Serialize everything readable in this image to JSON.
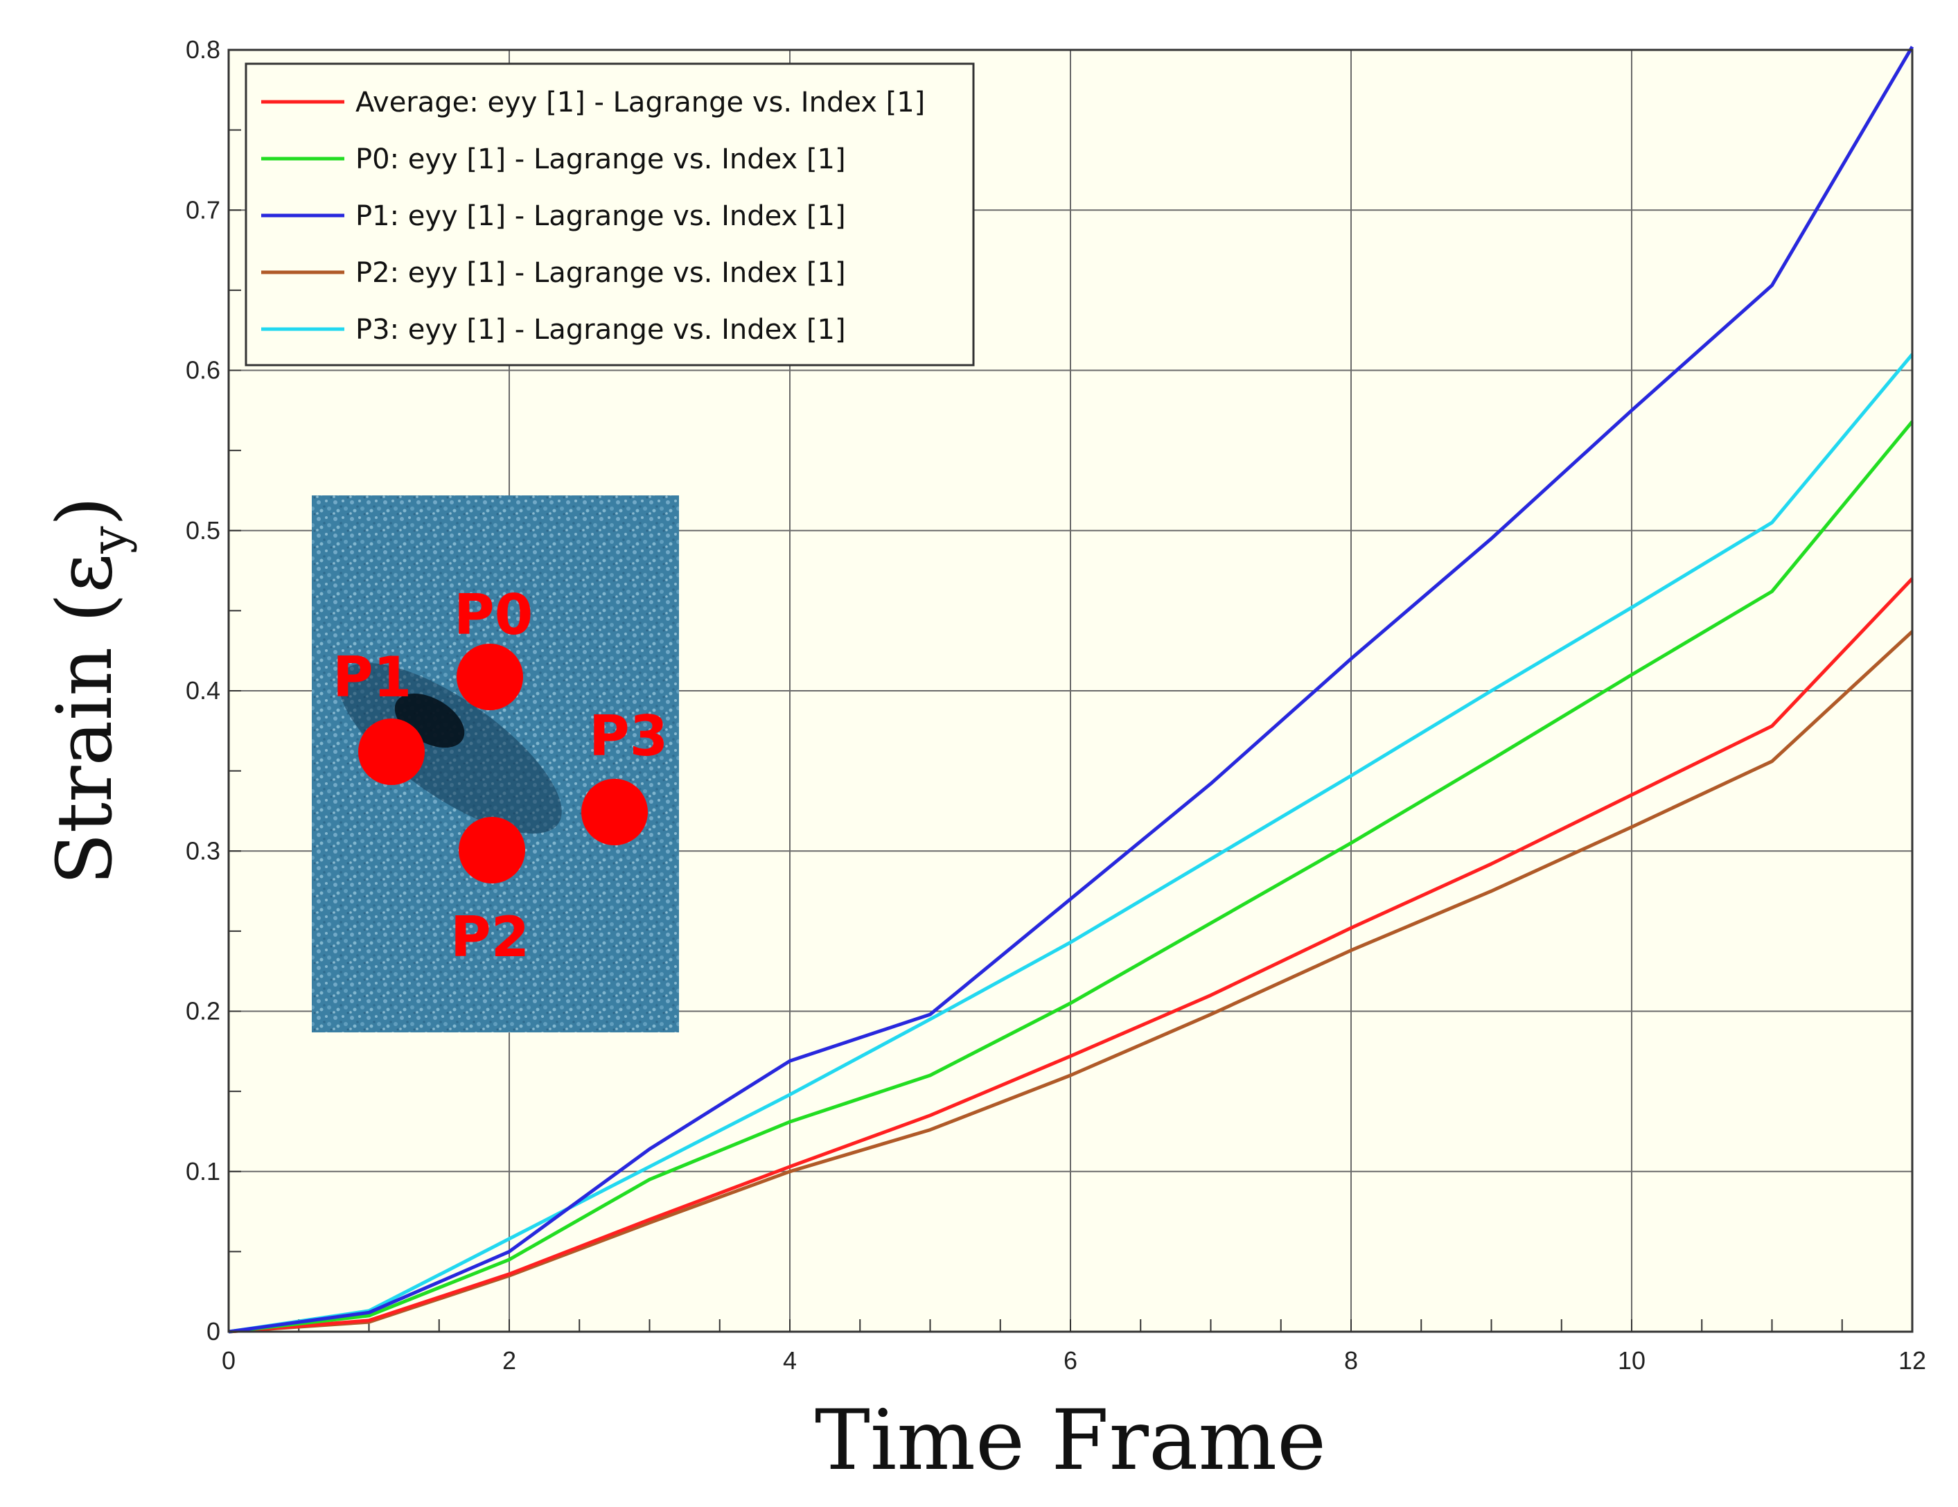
{
  "chart_data": {
    "type": "line",
    "xlabel": "Time Frame",
    "ylabel_main": "Strain (ε",
    "ylabel_sub": "y",
    "ylabel_close": ")",
    "xlim": [
      0,
      12
    ],
    "ylim": [
      0,
      0.8
    ],
    "xticks": [
      "0",
      "2",
      "4",
      "6",
      "8",
      "10",
      "12"
    ],
    "yticks": [
      "0",
      "0.1",
      "0.2",
      "0.3",
      "0.4",
      "0.5",
      "0.6",
      "0.7",
      "0.8"
    ],
    "grid": true,
    "legend_position": "top-left",
    "background": "#fffff0",
    "x": [
      0,
      1,
      2,
      3,
      4,
      5,
      6,
      7,
      8,
      9,
      10,
      11,
      12
    ],
    "series": [
      {
        "name": "Average: eyy [1] - Lagrange vs. Index [1]",
        "color": "#ff2020",
        "values": [
          0,
          0.007,
          0.036,
          0.07,
          0.103,
          0.135,
          0.172,
          0.21,
          0.252,
          0.292,
          0.335,
          0.378,
          0.47
        ]
      },
      {
        "name": "P0: eyy [1] - Lagrange vs. Index [1]",
        "color": "#22dd22",
        "values": [
          0,
          0.01,
          0.045,
          0.095,
          0.131,
          0.16,
          0.205,
          0.255,
          0.305,
          0.357,
          0.41,
          0.462,
          0.568
        ]
      },
      {
        "name": "P1: eyy [1] - Lagrange vs. Index [1]",
        "color": "#2828dd",
        "values": [
          0,
          0.012,
          0.05,
          0.114,
          0.169,
          0.198,
          0.27,
          0.342,
          0.42,
          0.495,
          0.575,
          0.653,
          0.802
        ]
      },
      {
        "name": "P2: eyy [1] - Lagrange vs. Index [1]",
        "color": "#b05a28",
        "values": [
          0,
          0.006,
          0.035,
          0.068,
          0.1,
          0.126,
          0.16,
          0.198,
          0.238,
          0.275,
          0.315,
          0.356,
          0.437
        ]
      },
      {
        "name": "P3: eyy [1] - Lagrange vs. Index [1]",
        "color": "#22d8f0",
        "values": [
          0,
          0.013,
          0.058,
          0.103,
          0.148,
          0.195,
          0.243,
          0.295,
          0.347,
          0.4,
          0.452,
          0.505,
          0.61
        ]
      }
    ],
    "inset": {
      "markers": [
        {
          "label": "P0"
        },
        {
          "label": "P1"
        },
        {
          "label": "P2"
        },
        {
          "label": "P3"
        }
      ],
      "marker_color": "#ff0000",
      "image_color": "#3f7ea0"
    }
  }
}
